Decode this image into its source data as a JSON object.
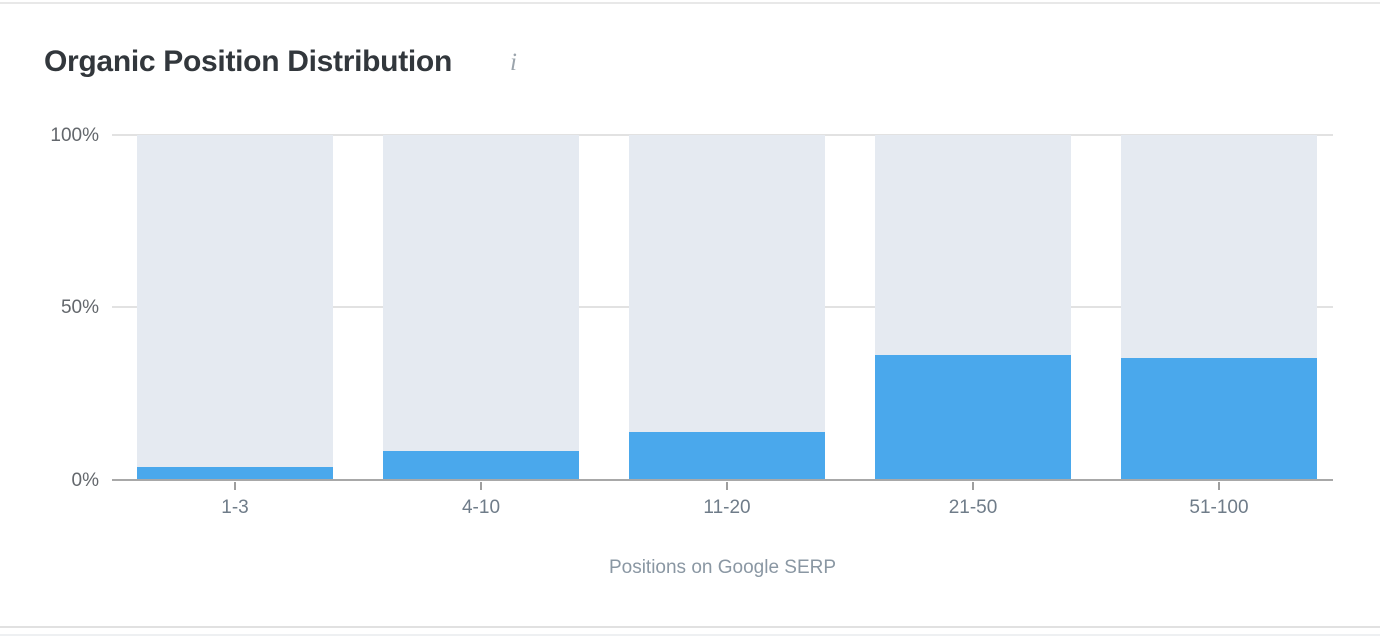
{
  "header": {
    "title": "Organic Position Distribution",
    "info_glyph": "i"
  },
  "chart_data": {
    "type": "bar",
    "title": "Organic Position Distribution",
    "categories": [
      "1-3",
      "4-10",
      "11-20",
      "21-50",
      "51-100"
    ],
    "values": [
      3.9,
      8.5,
      13.8,
      36.3,
      35.5
    ],
    "unit": "%",
    "xlabel": "Positions on Google SERP",
    "ylabel": "",
    "ylim": [
      0,
      100
    ],
    "yticks": [
      "100%",
      "50%",
      "0%"
    ],
    "legend": "none",
    "grid": "horizontal",
    "bar_style": "filled share of full-height 100% track",
    "colors": {
      "bar_fill": "#4aa8ec",
      "bar_track": "#e5eaf1",
      "gridline": "#e2e2e2",
      "axisline": "#a8a8a8"
    }
  }
}
